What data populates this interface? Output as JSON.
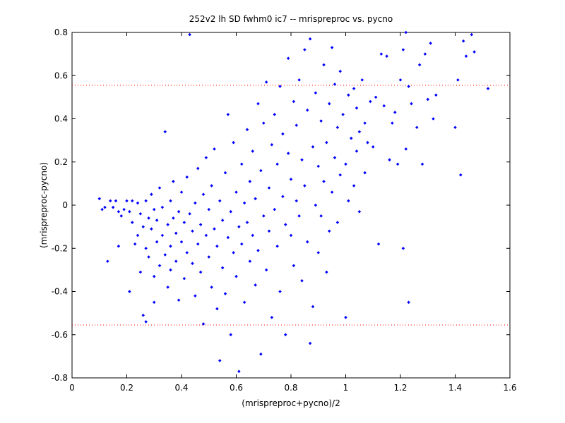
{
  "chart_data": {
    "type": "scatter",
    "title": "252v2 lh SD fwhm0 ic7 -- mrispreproc vs. pycno",
    "xlabel": "(mrispreproc+pycno)/2",
    "ylabel": "(mrispreproc-pycno)",
    "xlim": [
      0,
      1.6
    ],
    "ylim": [
      -0.8,
      0.8
    ],
    "xticks": [
      0,
      0.2,
      0.4,
      0.6,
      0.8,
      1,
      1.2,
      1.4,
      1.6
    ],
    "xtick_labels": [
      "0",
      "0.2",
      "0.4",
      "0.6",
      "0.8",
      "1",
      "1.2",
      "1.4",
      "1.6"
    ],
    "yticks": [
      -0.8,
      -0.6,
      -0.4,
      -0.2,
      0,
      0.2,
      0.4,
      0.6,
      0.8
    ],
    "ytick_labels": [
      "-0.8",
      "-0.6",
      "-0.4",
      "-0.2",
      "0",
      "0.2",
      "0.4",
      "0.6",
      "0.8"
    ],
    "grid": false,
    "legend": "none",
    "marker_color": "#0000ff",
    "reference_line_color": "#ff0000",
    "reference_lines": [
      0.555,
      -0.555
    ],
    "points": [
      [
        0.1,
        0.03
      ],
      [
        0.11,
        -0.02
      ],
      [
        0.12,
        -0.01
      ],
      [
        0.13,
        -0.26
      ],
      [
        0.14,
        0.02
      ],
      [
        0.15,
        -0.01
      ],
      [
        0.16,
        0.02
      ],
      [
        0.17,
        -0.19
      ],
      [
        0.17,
        -0.03
      ],
      [
        0.18,
        -0.05
      ],
      [
        0.19,
        -0.02
      ],
      [
        0.2,
        0.02
      ],
      [
        0.21,
        -0.03
      ],
      [
        0.21,
        -0.4
      ],
      [
        0.22,
        -0.08
      ],
      [
        0.22,
        0.02
      ],
      [
        0.23,
        -0.18
      ],
      [
        0.24,
        -0.14
      ],
      [
        0.24,
        0.01
      ],
      [
        0.25,
        -0.04
      ],
      [
        0.25,
        -0.31
      ],
      [
        0.26,
        -0.1
      ],
      [
        0.26,
        -0.51
      ],
      [
        0.27,
        0.02
      ],
      [
        0.27,
        -0.2
      ],
      [
        0.27,
        -0.54
      ],
      [
        0.28,
        -0.06
      ],
      [
        0.28,
        -0.24
      ],
      [
        0.29,
        0.05
      ],
      [
        0.29,
        -0.11
      ],
      [
        0.3,
        -0.02
      ],
      [
        0.3,
        -0.33
      ],
      [
        0.3,
        -0.45
      ],
      [
        0.31,
        -0.07
      ],
      [
        0.31,
        -0.17
      ],
      [
        0.32,
        0.08
      ],
      [
        0.32,
        -0.28
      ],
      [
        0.33,
        -0.01
      ],
      [
        0.33,
        -0.14
      ],
      [
        0.34,
        -0.23
      ],
      [
        0.34,
        0.34
      ],
      [
        0.35,
        -0.09
      ],
      [
        0.35,
        -0.38
      ],
      [
        0.36,
        0.02
      ],
      [
        0.36,
        -0.19
      ],
      [
        0.36,
        -0.3
      ],
      [
        0.37,
        -0.06
      ],
      [
        0.37,
        0.11
      ],
      [
        0.38,
        -0.13
      ],
      [
        0.38,
        -0.26
      ],
      [
        0.39,
        -0.03
      ],
      [
        0.39,
        -0.44
      ],
      [
        0.4,
        0.06
      ],
      [
        0.4,
        -0.17
      ],
      [
        0.41,
        -0.08
      ],
      [
        0.41,
        -0.34
      ],
      [
        0.42,
        0.13
      ],
      [
        0.42,
        -0.22
      ],
      [
        0.43,
        -0.04
      ],
      [
        0.43,
        0.79
      ],
      [
        0.44,
        -0.12
      ],
      [
        0.44,
        -0.27
      ],
      [
        0.45,
        0.01
      ],
      [
        0.45,
        -0.42
      ],
      [
        0.46,
        0.17
      ],
      [
        0.46,
        -0.18
      ],
      [
        0.47,
        -0.09
      ],
      [
        0.47,
        -0.31
      ],
      [
        0.48,
        0.05
      ],
      [
        0.48,
        -0.55
      ],
      [
        0.49,
        -0.14
      ],
      [
        0.49,
        0.22
      ],
      [
        0.5,
        -0.02
      ],
      [
        0.5,
        -0.24
      ],
      [
        0.51,
        0.09
      ],
      [
        0.51,
        -0.38
      ],
      [
        0.52,
        -0.11
      ],
      [
        0.52,
        0.26
      ],
      [
        0.53,
        -0.19
      ],
      [
        0.53,
        -0.48
      ],
      [
        0.54,
        0.02
      ],
      [
        0.54,
        -0.72
      ],
      [
        0.55,
        -0.07
      ],
      [
        0.55,
        -0.29
      ],
      [
        0.56,
        0.15
      ],
      [
        0.56,
        -0.41
      ],
      [
        0.57,
        -0.15
      ],
      [
        0.57,
        0.42
      ],
      [
        0.58,
        -0.03
      ],
      [
        0.58,
        -0.6
      ],
      [
        0.59,
        -0.22
      ],
      [
        0.59,
        0.29
      ],
      [
        0.6,
        0.06
      ],
      [
        0.6,
        -0.33
      ],
      [
        0.61,
        -0.1
      ],
      [
        0.61,
        -0.77
      ],
      [
        0.62,
        0.19
      ],
      [
        0.62,
        -0.18
      ],
      [
        0.63,
        0.01
      ],
      [
        0.63,
        -0.45
      ],
      [
        0.64,
        0.35
      ],
      [
        0.64,
        -0.08
      ],
      [
        0.65,
        -0.26
      ],
      [
        0.65,
        0.11
      ],
      [
        0.66,
        0.25
      ],
      [
        0.66,
        -0.14
      ],
      [
        0.67,
        -0.37
      ],
      [
        0.67,
        0.03
      ],
      [
        0.68,
        0.47
      ],
      [
        0.68,
        -0.21
      ],
      [
        0.69,
        0.16
      ],
      [
        0.69,
        -0.69
      ],
      [
        0.7,
        -0.05
      ],
      [
        0.7,
        0.38
      ],
      [
        0.71,
        0.57
      ],
      [
        0.71,
        -0.3
      ],
      [
        0.72,
        0.08
      ],
      [
        0.72,
        -0.12
      ],
      [
        0.73,
        0.28
      ],
      [
        0.73,
        -0.52
      ],
      [
        0.74,
        0.42
      ],
      [
        0.74,
        -0.02
      ],
      [
        0.75,
        -0.19
      ],
      [
        0.75,
        0.19
      ],
      [
        0.76,
        0.55
      ],
      [
        0.76,
        -0.4
      ],
      [
        0.77,
        0.04
      ],
      [
        0.77,
        0.33
      ],
      [
        0.78,
        -0.09
      ],
      [
        0.78,
        -0.6
      ],
      [
        0.79,
        0.24
      ],
      [
        0.79,
        0.68
      ],
      [
        0.8,
        -0.14
      ],
      [
        0.8,
        0.12
      ],
      [
        0.81,
        0.48
      ],
      [
        0.81,
        -0.28
      ],
      [
        0.82,
        0.02
      ],
      [
        0.82,
        0.37
      ],
      [
        0.83,
        -0.05
      ],
      [
        0.83,
        0.58
      ],
      [
        0.84,
        0.21
      ],
      [
        0.84,
        -0.35
      ],
      [
        0.85,
        0.72
      ],
      [
        0.85,
        0.09
      ],
      [
        0.86,
        -0.17
      ],
      [
        0.86,
        0.44
      ],
      [
        0.87,
        0.77
      ],
      [
        0.87,
        -0.64
      ],
      [
        0.88,
        0.27
      ],
      [
        0.88,
        -0.47
      ],
      [
        0.89,
        0.0
      ],
      [
        0.89,
        0.52
      ],
      [
        0.9,
        0.18
      ],
      [
        0.9,
        -0.22
      ],
      [
        0.91,
        0.39
      ],
      [
        0.91,
        -0.05
      ],
      [
        0.92,
        0.65
      ],
      [
        0.92,
        0.11
      ],
      [
        0.93,
        -0.31
      ],
      [
        0.93,
        0.29
      ],
      [
        0.94,
        0.47
      ],
      [
        0.94,
        -0.12
      ],
      [
        0.95,
        0.06
      ],
      [
        0.95,
        0.73
      ],
      [
        0.96,
        0.22
      ],
      [
        0.96,
        0.56
      ],
      [
        0.97,
        0.36
      ],
      [
        0.97,
        -0.08
      ],
      [
        0.98,
        0.14
      ],
      [
        0.98,
        0.62
      ],
      [
        0.99,
        0.42
      ],
      [
        1.0,
        0.19
      ],
      [
        1.0,
        -0.52
      ],
      [
        1.01,
        0.51
      ],
      [
        1.01,
        0.02
      ],
      [
        1.02,
        0.31
      ],
      [
        1.03,
        0.54
      ],
      [
        1.03,
        0.09
      ],
      [
        1.04,
        0.25
      ],
      [
        1.04,
        0.45
      ],
      [
        1.05,
        0.34
      ],
      [
        1.05,
        -0.03
      ],
      [
        1.06,
        0.58
      ],
      [
        1.07,
        0.38
      ],
      [
        1.07,
        0.15
      ],
      [
        1.08,
        0.29
      ],
      [
        1.09,
        0.48
      ],
      [
        1.1,
        0.27
      ],
      [
        1.11,
        0.5
      ],
      [
        1.12,
        -0.18
      ],
      [
        1.13,
        0.7
      ],
      [
        1.14,
        0.46
      ],
      [
        1.15,
        0.69
      ],
      [
        1.16,
        0.21
      ],
      [
        1.17,
        0.38
      ],
      [
        1.18,
        0.43
      ],
      [
        1.19,
        0.19
      ],
      [
        1.2,
        0.58
      ],
      [
        1.21,
        0.72
      ],
      [
        1.21,
        -0.2
      ],
      [
        1.22,
        0.8
      ],
      [
        1.22,
        0.26
      ],
      [
        1.23,
        0.55
      ],
      [
        1.23,
        -0.45
      ],
      [
        1.24,
        0.47
      ],
      [
        1.26,
        0.36
      ],
      [
        1.27,
        0.65
      ],
      [
        1.28,
        0.19
      ],
      [
        1.29,
        0.7
      ],
      [
        1.3,
        0.49
      ],
      [
        1.31,
        0.75
      ],
      [
        1.32,
        0.4
      ],
      [
        1.33,
        0.51
      ],
      [
        1.4,
        0.36
      ],
      [
        1.41,
        0.58
      ],
      [
        1.42,
        0.14
      ],
      [
        1.43,
        0.76
      ],
      [
        1.44,
        0.69
      ],
      [
        1.46,
        0.79
      ],
      [
        1.47,
        0.71
      ],
      [
        1.52,
        0.54
      ]
    ]
  }
}
